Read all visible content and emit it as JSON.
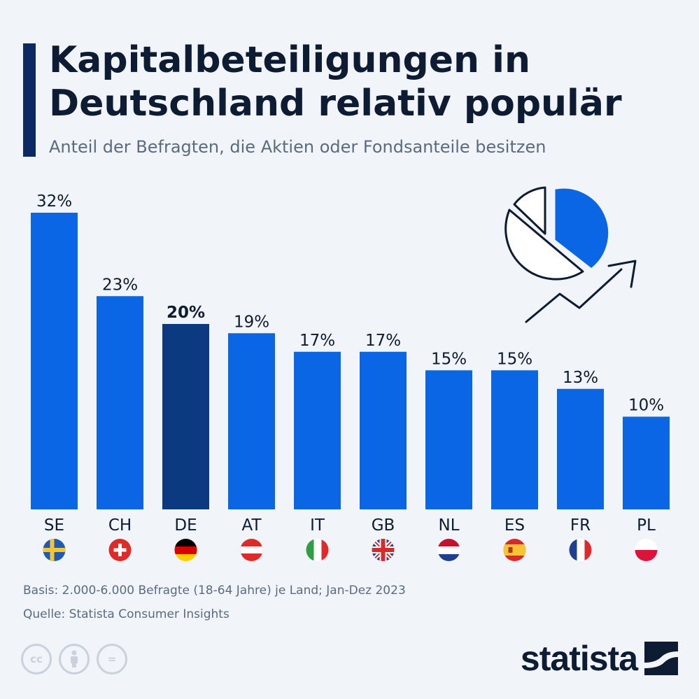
{
  "title": "Kapitalbeteiligungen in Deutschland relativ populär",
  "subtitle": "Anteil der Befragten, die Aktien oder Fondsanteile besitzen",
  "colors": {
    "bar": "#0a66e4",
    "highlight": "#0b3a80",
    "title_accent": "#0b2a63"
  },
  "chart_data": {
    "type": "bar",
    "title": "Kapitalbeteiligungen in Deutschland relativ populär",
    "subtitle": "Anteil der Befragten, die Aktien oder Fondsanteile besitzen",
    "categories": [
      "SE",
      "CH",
      "DE",
      "AT",
      "IT",
      "GB",
      "NL",
      "ES",
      "FR",
      "PL"
    ],
    "values": [
      32,
      23,
      20,
      19,
      17,
      17,
      15,
      15,
      13,
      10
    ],
    "value_labels": [
      "32%",
      "23%",
      "20%",
      "19%",
      "17%",
      "17%",
      "15%",
      "15%",
      "13%",
      "10%"
    ],
    "highlight": "DE",
    "unit": "%",
    "ylim": [
      0,
      32
    ],
    "grid": false,
    "flags": [
      "flag-sweden-icon",
      "flag-switzerland-icon",
      "flag-germany-icon",
      "flag-austria-icon",
      "flag-italy-icon",
      "flag-uk-icon",
      "flag-netherlands-icon",
      "flag-spain-icon",
      "flag-france-icon",
      "flag-poland-icon"
    ]
  },
  "footer": {
    "basis": "Basis: 2.000-6.000 Befragte (18-64 Jahre) je Land; Jan-Dez 2023",
    "source": "Quelle: Statista Consumer Insights"
  },
  "license_icons": [
    "cc-icon",
    "by-icon",
    "nd-icon"
  ],
  "license_icon_text": {
    "cc": "cc",
    "nd": "="
  },
  "brand": "statista"
}
